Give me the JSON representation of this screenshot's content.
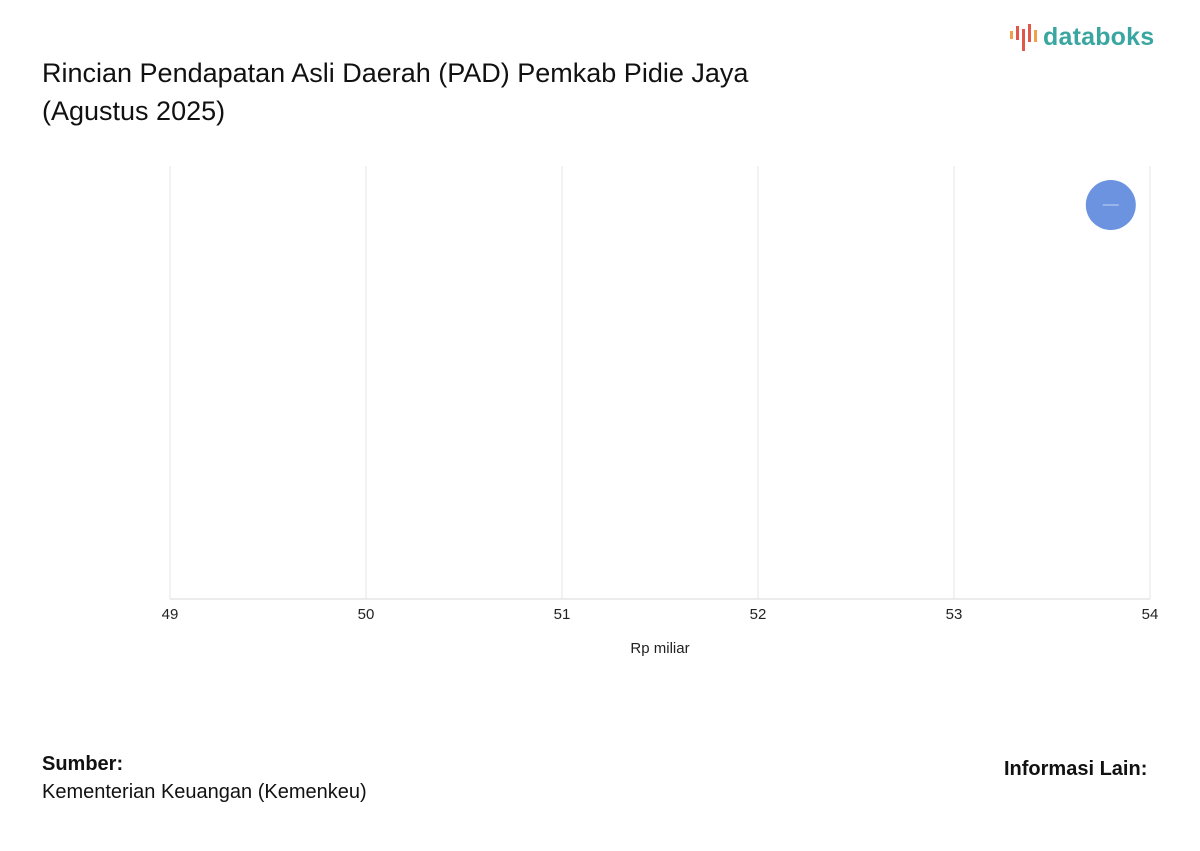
{
  "header": {
    "title_line1": "Rincian Pendapatan Asli Daerah (PAD) Pemkab Pidie Jaya",
    "title_line2": "(Agustus 2025)",
    "brand": "databoks"
  },
  "chart_data": {
    "type": "scatter",
    "title": "Rincian Pendapatan Asli Daerah (PAD) Pemkab Pidie Jaya (Agustus 2025)",
    "xlabel": "Rp miliar",
    "ylabel": "",
    "xlim": [
      49,
      54
    ],
    "x_ticks": [
      49,
      50,
      51,
      52,
      53,
      54
    ],
    "grid": true,
    "legend": "none",
    "points": [
      {
        "x": 53.8,
        "color": "#6b93e0"
      }
    ]
  },
  "footer": {
    "source_label": "Sumber:",
    "source_value": "Kementerian Keuangan (Kemenkeu)",
    "info_label": "Informasi Lain:"
  },
  "colors": {
    "brand_teal": "#3aa6a1",
    "brand_red": "#e0584a",
    "brand_orange": "#f0a04b",
    "point": "#6b93e0",
    "grid": "#e6e6e6"
  }
}
